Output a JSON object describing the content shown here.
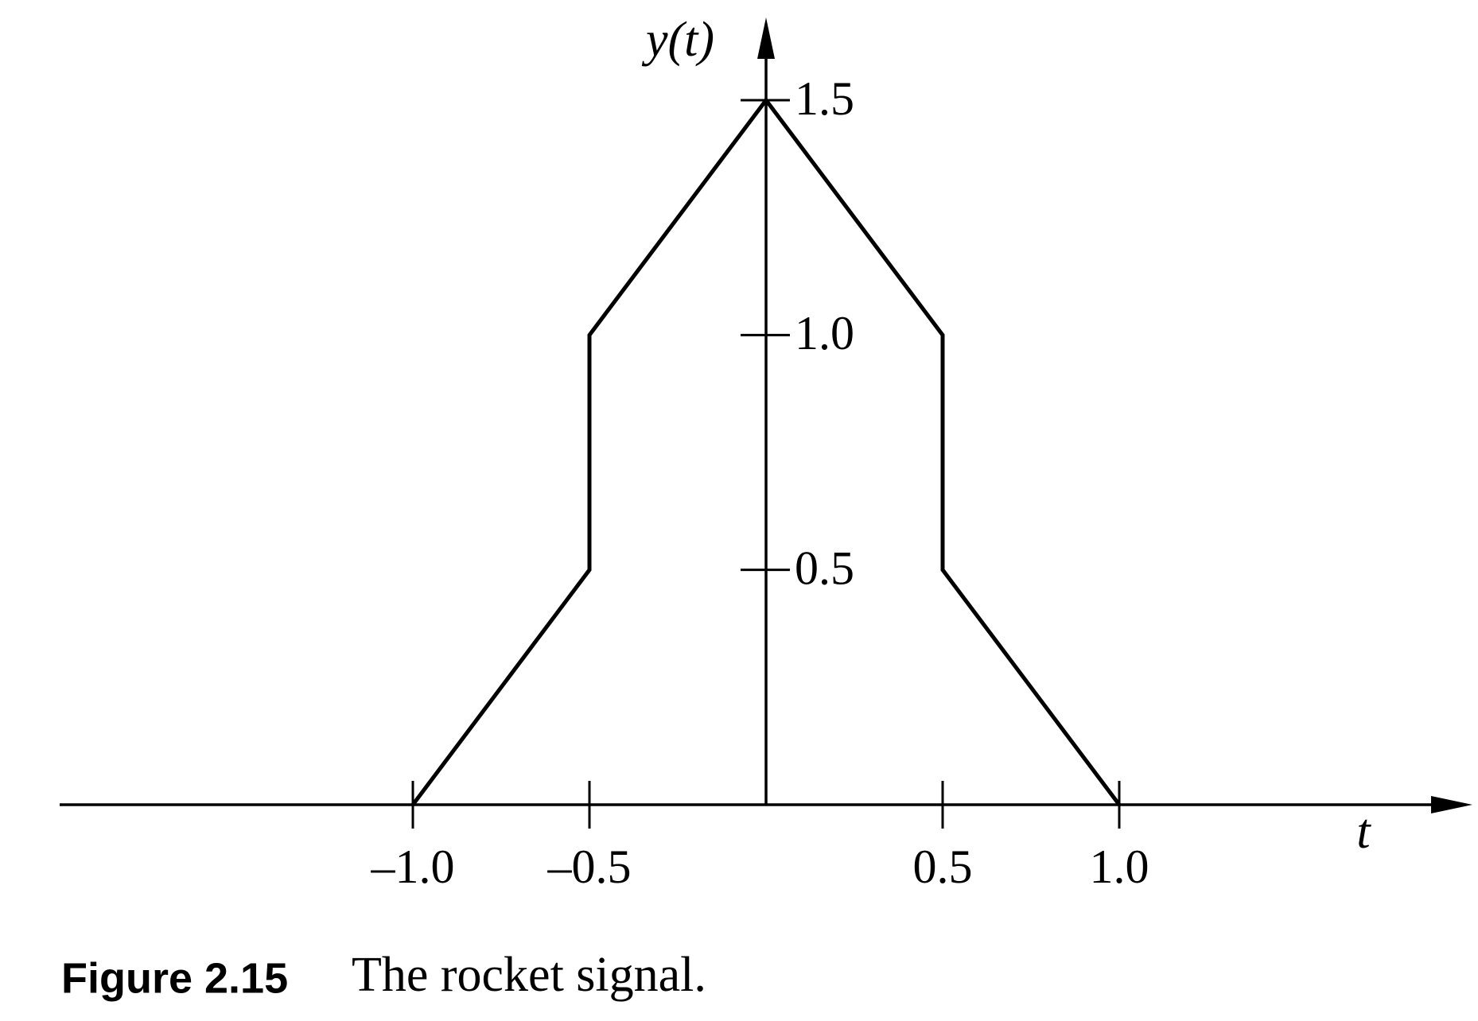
{
  "chart_data": {
    "type": "line",
    "figure_label": "Figure 2.15",
    "title": "The rocket signal.",
    "x_label": "t",
    "y_label": "y(t)",
    "x": [
      -1,
      -0.5,
      -0.5,
      0,
      0.5,
      0.5,
      1
    ],
    "values": [
      0,
      0.5,
      1,
      1.5,
      1,
      0.5,
      0
    ],
    "color": "#000000",
    "xlim": [
      -2,
      2
    ],
    "ylim": [
      0,
      1.5
    ],
    "xticks": [
      {
        "value": -1,
        "label": "–1.0"
      },
      {
        "value": -0.5,
        "label": "–0.5"
      },
      {
        "value": 0.5,
        "label": "0.5"
      },
      {
        "value": 1,
        "label": "1.0"
      }
    ],
    "yticks": [
      0.5,
      {
        "value": 1,
        "label": "1.0"
      },
      1.5
    ],
    "grid": false
  }
}
